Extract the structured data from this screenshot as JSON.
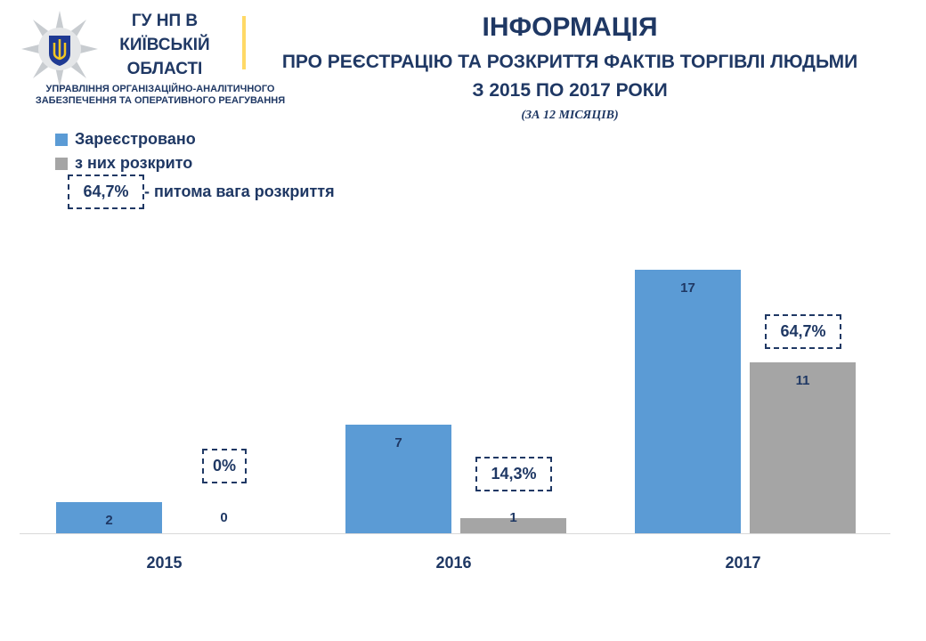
{
  "header": {
    "org": "ГУ НП В КИЇВСЬКІЙ ОБЛАСТІ",
    "dept_line1": "УПРАВЛІННЯ ОРГАНІЗАЦІЙНО-АНАЛІТИЧНОГО",
    "dept_line2": "ЗАБЕЗПЕЧЕННЯ ТА ОПЕРАТИВНОГО  РЕАГУВАННЯ"
  },
  "chart_data": {
    "type": "bar",
    "title": "ІНФОРМАЦІЯ",
    "subtitle1": "ПРО РЕЄСТРАЦІЮ ТА РОЗКРИТТЯ ФАКТІВ ТОРГІВЛІ ЛЮДЬМИ",
    "subtitle2": "З 2015 ПО 2017 РОКИ",
    "subtitle3": "(ЗА 12 МІСЯЦІВ)",
    "categories": [
      "2015",
      "2016",
      "2017"
    ],
    "series": [
      {
        "name": "Зареєстровано",
        "values": [
          2,
          7,
          17
        ],
        "color": "#5b9bd5"
      },
      {
        "name": "з них розкрито",
        "values": [
          0,
          1,
          11
        ],
        "color": "#a5a5a5"
      }
    ],
    "percent_labels": [
      "0%",
      "14,3%",
      "64,7%"
    ],
    "legend_note_value": "64,7%",
    "legend_note_text": "- питома  вага розкриття",
    "ylim": [
      0,
      17
    ],
    "legend_position": "top-left"
  }
}
